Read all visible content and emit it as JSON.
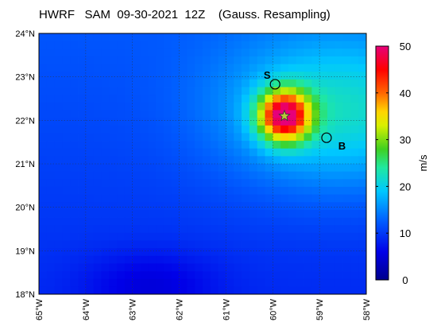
{
  "title": "HWRF   SAM  09-30-2021  12Z    (Gauss. Resampling)",
  "map": {
    "lon_min": -65,
    "lon_max": -58,
    "lat_min": 18,
    "lat_max": 24,
    "lat_ticks": [
      "24°N",
      "23°N",
      "22°N",
      "21°N",
      "20°N",
      "19°N",
      "18°N"
    ],
    "lon_ticks": [
      "65°W",
      "64°W",
      "63°W",
      "62°W",
      "61°W",
      "60°W",
      "59°W",
      "58°W"
    ],
    "grid": true,
    "field": "wind speed",
    "storm_center": {
      "lon": -59.75,
      "lat": 22.1,
      "symbol": "star"
    },
    "peak_speed": 48,
    "markers": [
      {
        "label": "S",
        "lon": -59.95,
        "lat": 22.83,
        "label_lon": -60.12,
        "label_lat": 23.05
      },
      {
        "label": "B",
        "lon": -58.85,
        "lat": 21.6,
        "label_lon": -58.52,
        "label_lat": 21.42
      }
    ]
  },
  "colorbar": {
    "label": "m/s",
    "min": 0,
    "max": 50,
    "ticks": [
      "0",
      "10",
      "20",
      "30",
      "40",
      "50"
    ],
    "colormap": "jet-like (navy → blue → cyan → green → yellow → orange → red → magenta)"
  }
}
